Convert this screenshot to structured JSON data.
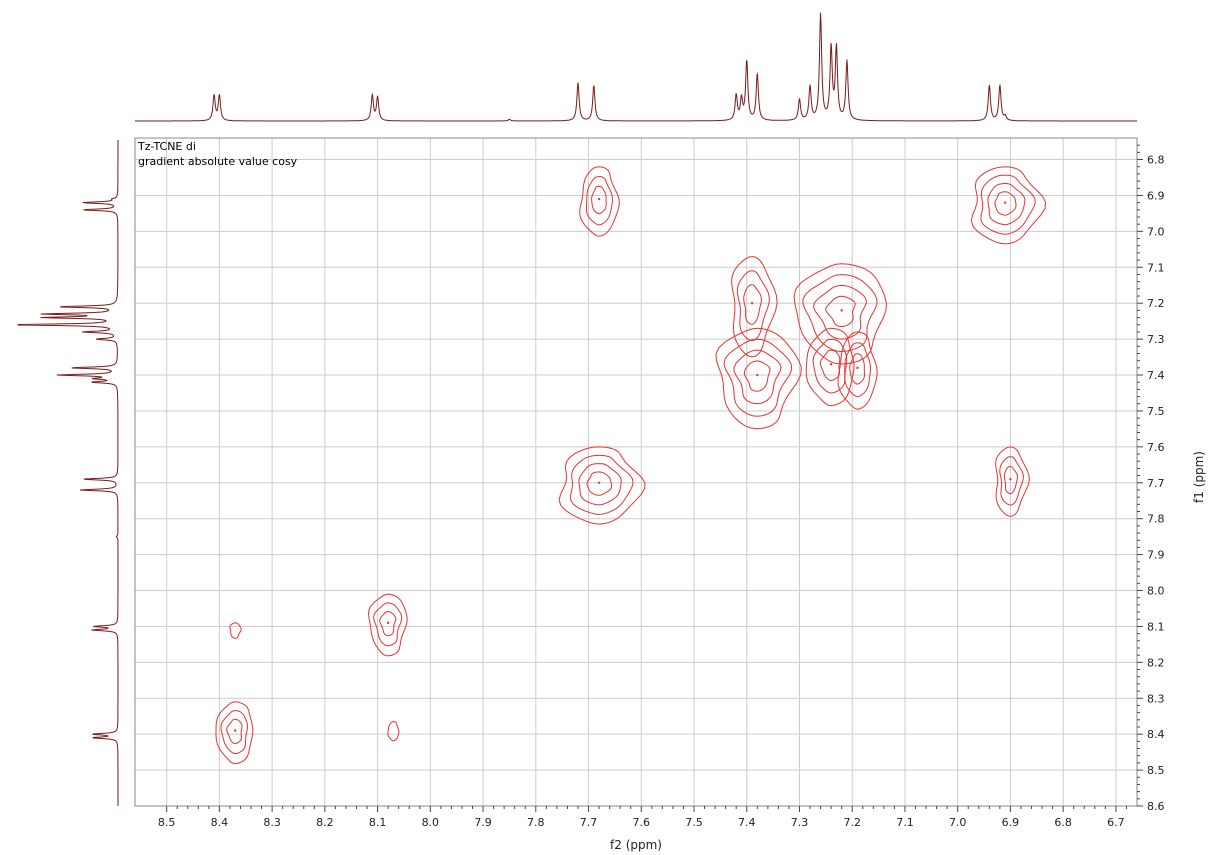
{
  "chart_data": {
    "type": "contour",
    "experiment": "gradient absolute value cosy",
    "annotations": [
      "Tz-TCNE di",
      "gradient absolute value cosy"
    ],
    "xlabel": "f2 (ppm)",
    "ylabel": "f1 (ppm)",
    "xlim": [
      8.56,
      6.66
    ],
    "ylim": [
      6.74,
      8.6
    ],
    "x_ticks": [
      "8.5",
      "8.4",
      "8.3",
      "8.2",
      "8.1",
      "8.0",
      "7.9",
      "7.8",
      "7.7",
      "7.6",
      "7.5",
      "7.4",
      "7.3",
      "7.2",
      "7.1",
      "7.0",
      "6.9",
      "6.8",
      "6.7"
    ],
    "y_ticks": [
      "6.8",
      "6.9",
      "7.0",
      "7.1",
      "7.2",
      "7.3",
      "7.4",
      "7.5",
      "7.6",
      "7.7",
      "7.8",
      "7.9",
      "8.0",
      "8.1",
      "8.2",
      "8.3",
      "8.4",
      "8.5",
      "8.6"
    ],
    "grid": true,
    "colors": {
      "contour": "#e8332f",
      "projection": "#7a1a1a",
      "axis": "#555555",
      "grid": "#cccccc"
    },
    "projection_peaks_ppm": [
      {
        "x": 8.41,
        "h": 0.3
      },
      {
        "x": 8.4,
        "h": 0.3
      },
      {
        "x": 8.11,
        "h": 0.3
      },
      {
        "x": 8.1,
        "h": 0.28
      },
      {
        "x": 7.72,
        "h": 0.45
      },
      {
        "x": 7.69,
        "h": 0.42
      },
      {
        "x": 7.85,
        "h": 0.02
      },
      {
        "x": 7.42,
        "h": 0.3
      },
      {
        "x": 7.41,
        "h": 0.25
      },
      {
        "x": 7.4,
        "h": 0.7
      },
      {
        "x": 7.38,
        "h": 0.55
      },
      {
        "x": 7.3,
        "h": 0.25
      },
      {
        "x": 7.28,
        "h": 0.4
      },
      {
        "x": 7.26,
        "h": 1.25
      },
      {
        "x": 7.24,
        "h": 0.85
      },
      {
        "x": 7.23,
        "h": 0.85
      },
      {
        "x": 7.21,
        "h": 0.7
      },
      {
        "x": 6.94,
        "h": 0.42
      },
      {
        "x": 6.92,
        "h": 0.42
      },
      {
        "x": 6.91,
        "h": 0.05
      }
    ],
    "cross_peaks": [
      {
        "x": 7.68,
        "y": 6.91,
        "rx": 0.035,
        "ry": 0.09,
        "levels": 3
      },
      {
        "x": 6.91,
        "y": 6.92,
        "rx": 0.065,
        "ry": 0.1,
        "levels": 4
      },
      {
        "x": 7.39,
        "y": 7.2,
        "rx": 0.04,
        "ry": 0.13,
        "levels": 3
      },
      {
        "x": 7.38,
        "y": 7.4,
        "rx": 0.075,
        "ry": 0.13,
        "levels": 4
      },
      {
        "x": 7.22,
        "y": 7.22,
        "rx": 0.085,
        "ry": 0.13,
        "levels": 4
      },
      {
        "x": 7.24,
        "y": 7.37,
        "rx": 0.045,
        "ry": 0.1,
        "levels": 3
      },
      {
        "x": 7.19,
        "y": 7.38,
        "rx": 0.035,
        "ry": 0.1,
        "levels": 3
      },
      {
        "x": 7.68,
        "y": 7.7,
        "rx": 0.075,
        "ry": 0.1,
        "levels": 4
      },
      {
        "x": 6.9,
        "y": 7.69,
        "rx": 0.03,
        "ry": 0.09,
        "levels": 3
      },
      {
        "x": 8.37,
        "y": 8.11,
        "rx": 0.01,
        "ry": 0.02,
        "levels": 1
      },
      {
        "x": 8.08,
        "y": 8.09,
        "rx": 0.035,
        "ry": 0.08,
        "levels": 3
      },
      {
        "x": 8.37,
        "y": 8.39,
        "rx": 0.035,
        "ry": 0.08,
        "levels": 3
      },
      {
        "x": 8.07,
        "y": 8.39,
        "rx": 0.01,
        "ry": 0.025,
        "levels": 1
      }
    ]
  }
}
